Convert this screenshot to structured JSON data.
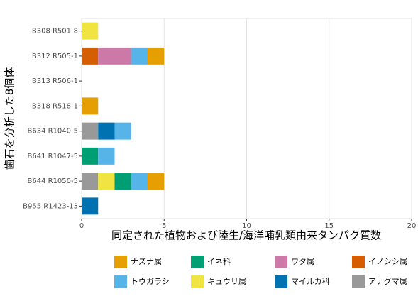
{
  "chart_data": {
    "type": "bar",
    "orientation": "horizontal",
    "stacked": true,
    "x_label": "同定された植物および陸生/海洋哺乳類由来タンパク質数",
    "y_label": "歯石を分析した8個体",
    "categories": [
      "B308 R501-8",
      "B312 R505-1",
      "B313 R506-1",
      "B318 R518-1",
      "B634 R1040-5",
      "B641 R1047-5",
      "B644 R1050-5",
      "B955 R1423-13"
    ],
    "series": [
      {
        "name": "ナズナ属",
        "color": "#E69F00",
        "values": [
          0,
          1,
          0,
          1,
          0,
          0,
          1,
          0
        ]
      },
      {
        "name": "トウガラシ",
        "color": "#56B4E9",
        "values": [
          0,
          1,
          0,
          0,
          1,
          1,
          1,
          0
        ]
      },
      {
        "name": "イネ科",
        "color": "#009E73",
        "values": [
          0,
          0,
          0,
          0,
          0,
          1,
          1,
          0
        ]
      },
      {
        "name": "キュウリ属",
        "color": "#F0E442",
        "values": [
          1,
          0,
          0,
          0,
          0,
          0,
          1,
          0
        ]
      },
      {
        "name": "ワタ属",
        "color": "#CC79A7",
        "values": [
          0,
          2,
          0,
          0,
          0,
          0,
          0,
          0
        ]
      },
      {
        "name": "マイルカ科",
        "color": "#0072B2",
        "values": [
          0,
          0,
          0,
          0,
          1,
          0,
          0,
          1
        ]
      },
      {
        "name": "イノシシ属",
        "color": "#D55E00",
        "values": [
          0,
          1,
          0,
          0,
          0,
          0,
          0,
          0
        ]
      },
      {
        "name": "アナグマ属",
        "color": "#999999",
        "values": [
          0,
          0,
          0,
          0,
          1,
          0,
          1,
          0
        ]
      }
    ],
    "xlim": [
      0,
      20
    ],
    "xticks": [
      0,
      5,
      10,
      15,
      20
    ],
    "grid": true,
    "legend": "bottom"
  }
}
